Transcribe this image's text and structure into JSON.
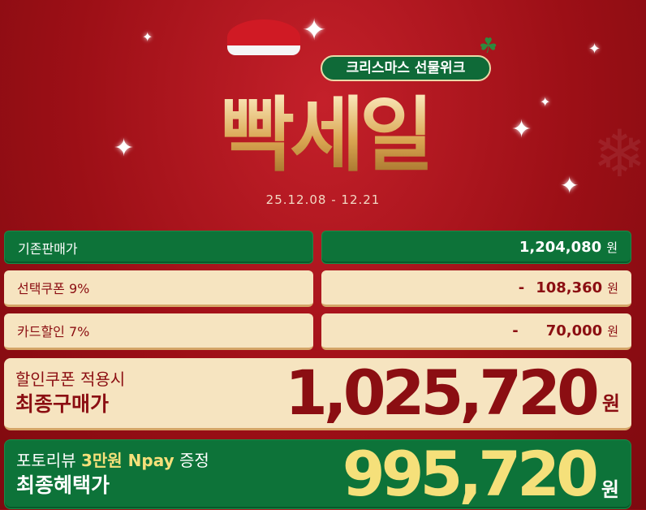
{
  "header": {
    "title": "빡세일",
    "badge": "크리스마스 선물위크",
    "date_range": "25.12.08 - 12.21"
  },
  "rows": [
    {
      "label": "기존판매가",
      "prefix": "",
      "value": "1,204,080",
      "unit": "원"
    },
    {
      "label": "선택쿠폰 9%",
      "prefix": "-",
      "value": "108,360",
      "unit": "원"
    },
    {
      "label": "카드할인 7%",
      "prefix": "-",
      "value": "70,000",
      "unit": "원"
    }
  ],
  "final_purchase": {
    "line1": "할인쿠폰 적용시",
    "line2": "최종구매가",
    "value": "1,025,720",
    "unit": "원"
  },
  "final_benefit": {
    "line1_a": "포토리뷰 ",
    "line1_highlight": "3만원 Npay",
    "line1_b": " 증정",
    "line2": "최종혜택가",
    "value": "995,720",
    "unit": "원"
  },
  "colors": {
    "background": "#9c0f16",
    "green": "#0d7339",
    "cream": "#f6e4c0",
    "dark_red": "#8b0e12",
    "gold": "#f5e07a"
  }
}
